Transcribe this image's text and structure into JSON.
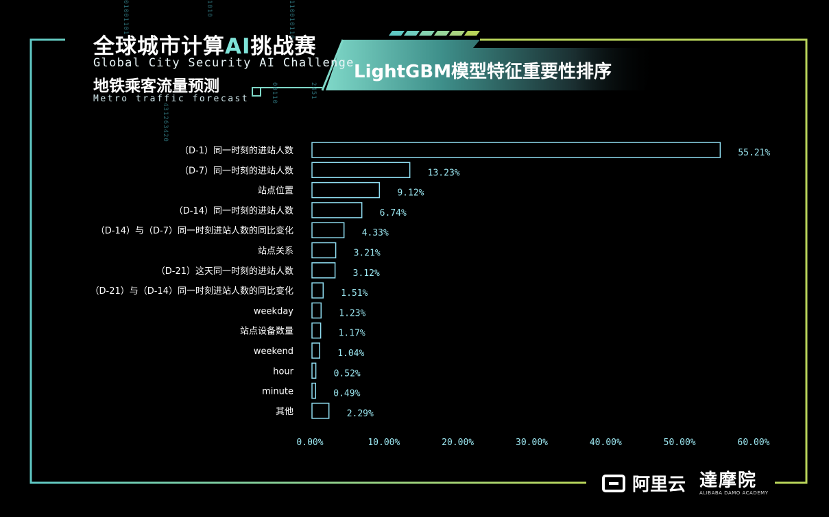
{
  "header": {
    "brand_cn_prefix": "全球城市计算",
    "brand_cn_ai": "AI",
    "brand_cn_suffix": "挑战赛",
    "brand_en": "Global City Security AI Challenge",
    "brand_sub_cn": "地铁乘客流量预测",
    "brand_sub_en": "Metro traffic forecast",
    "banner_title": "LightGBM模型特征重要性排序"
  },
  "footer": {
    "aliyun": "阿里云",
    "damo_cn": "達摩院",
    "damo_en": "ALIBABA DAMO ACADEMY"
  },
  "colors": {
    "accent": "#7fe3d8",
    "bar_stroke": "#8fdcf0",
    "frame_left": "#5fc8c4",
    "frame_right": "#b8d45a"
  },
  "chart_data": {
    "type": "bar",
    "orientation": "horizontal",
    "title": "LightGBM模型特征重要性排序",
    "categories": [
      "（D-1）同一时刻的进站人数",
      "（D-7）同一时刻的进站人数",
      "站点位置",
      "（D-14）同一时刻的进站人数",
      "（D-14）与（D-7）同一时刻进站人数的同比变化",
      "站点关系",
      "（D-21）这天同一时刻的进站人数",
      "（D-21）与（D-14）同一时刻进站人数的同比变化",
      "weekday",
      "站点设备数量",
      "weekend",
      "hour",
      "minute",
      "其他"
    ],
    "values": [
      55.21,
      13.23,
      9.12,
      6.74,
      4.33,
      3.21,
      3.12,
      1.51,
      1.23,
      1.17,
      1.04,
      0.52,
      0.49,
      2.29
    ],
    "value_labels": [
      "55.21%",
      "13.23%",
      "9.12%",
      "6.74%",
      "4.33%",
      "3.21%",
      "3.12%",
      "1.51%",
      "1.23%",
      "1.17%",
      "1.04%",
      "0.52%",
      "0.49%",
      "2.29%"
    ],
    "xticks": [
      "0.00%",
      "10.00%",
      "20.00%",
      "30.00%",
      "40.00%",
      "50.00%",
      "60.00%"
    ],
    "xlim": [
      0,
      60
    ],
    "grid": false,
    "xlabel": "",
    "ylabel": ""
  }
}
